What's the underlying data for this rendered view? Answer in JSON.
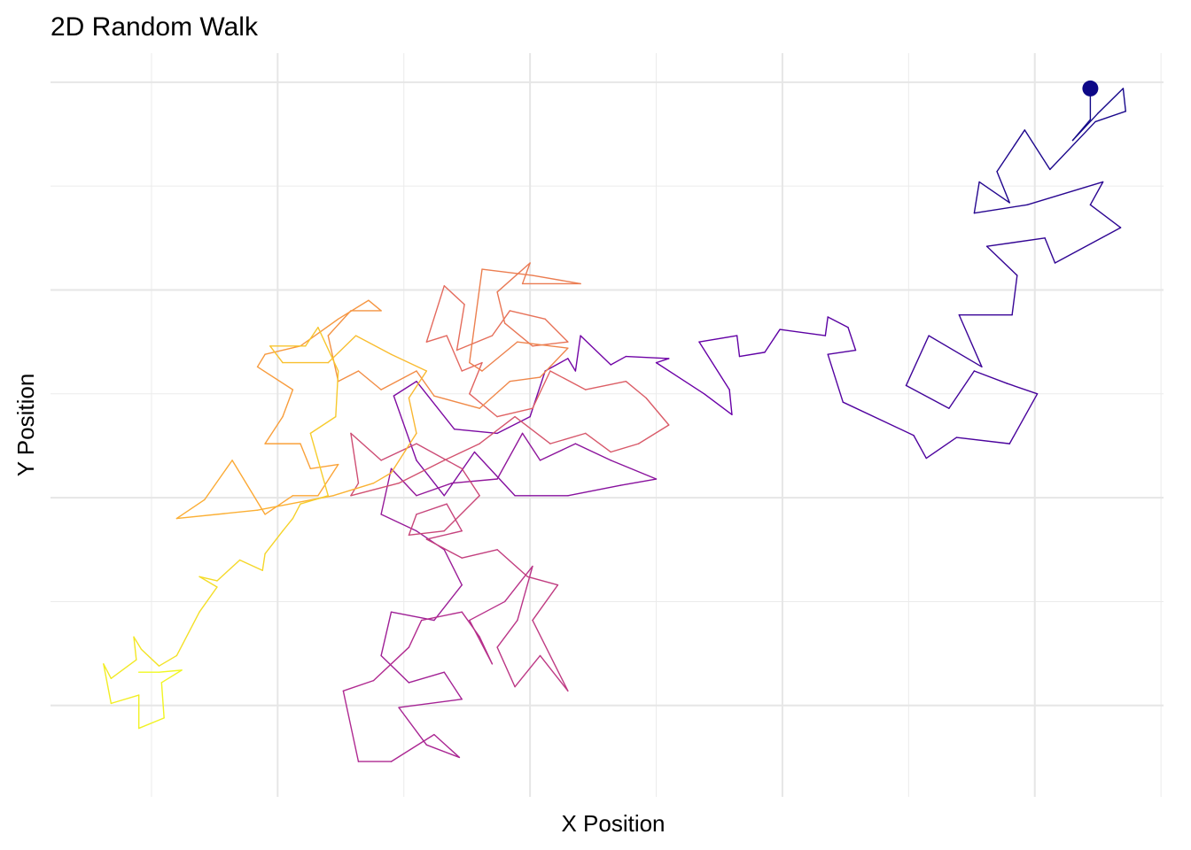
{
  "chart_data": {
    "type": "path",
    "title": "2D Random Walk",
    "x_label": "X Position",
    "y_label": "Y Position",
    "xlim": [
      -19,
      25.1
    ],
    "ylim": [
      -14.4,
      21.4
    ],
    "xticks": [
      -10,
      0,
      10,
      20
    ],
    "yticks": [
      -10,
      0,
      10,
      20
    ],
    "minor_xticks": [
      -15,
      -5,
      5,
      15,
      25
    ],
    "minor_yticks": [
      -5,
      5,
      15
    ],
    "grid": true,
    "tick_labels": false,
    "start_marker": true,
    "colors": [
      "#0d0887",
      "#6a00a8",
      "#b12a90",
      "#e16462",
      "#fca636",
      "#f0f921"
    ],
    "x": [
      22.2,
      22.2,
      21.5,
      22.5,
      23.5,
      23.6,
      22.4,
      20.6,
      19.6,
      18.5,
      19.0,
      17.8,
      17.6,
      19.7,
      22.7,
      22.2,
      23.4,
      20.8,
      20.4,
      18.1,
      19.3,
      19.1,
      17.0,
      17.9,
      15.8,
      14.9,
      16.6,
      17.6,
      18.9,
      20.1,
      19.0,
      16.9,
      15.7,
      15.2,
      12.4,
      11.8,
      12.9,
      12.6,
      11.8,
      11.7,
      9.9,
      9.3,
      8.3,
      8.2,
      6.7,
      7.9,
      8.0,
      6.9,
      5.0,
      5.5,
      3.8,
      3.2,
      2.0,
      1.8,
      1.5,
      0.6,
      0,
      -1.3,
      -3.0,
      -4.5,
      -5.4,
      -4.5,
      -3.4,
      -2.2,
      -0.6,
      1.5,
      3.6,
      5.0,
      3.2,
      1.8,
      0.4,
      -0.3,
      -1.3,
      -3.1,
      -4.5,
      -5.5,
      -5.9,
      -4.5,
      -3.4,
      -2.7,
      -3.8,
      -5.5,
      -5.9,
      -4.8,
      -3.4,
      -2.7,
      -5.2,
      -4.1,
      -2.8,
      -3.8,
      -5.5,
      -6.8,
      -7.4,
      -6.2,
      -4.8,
      -4.3,
      -2.7,
      -2.0,
      -1.5,
      -2.4,
      -1.0,
      0.1,
      -0.5,
      -1.3,
      -0.6,
      0.4,
      1.5,
      0.1,
      1.1,
      -0.1,
      -1.3,
      -2.7,
      -4.1,
      -2.7,
      -3.3,
      -4.5,
      -4.8,
      -3.4,
      -2.0,
      -2.7,
      -4.5,
      -5.9,
      -7.1,
      -6.8,
      -7.1,
      -5.2,
      -3.4,
      -2.0,
      -0.6,
      0.8,
      2.2,
      3.2,
      4.3,
      5.5,
      4.6,
      3.8,
      2.2,
      0.8,
      0.1,
      -1.3,
      -2.4,
      -1.9,
      -2.7,
      -3.3,
      -4.1,
      -3.4,
      -2.6,
      -2.9,
      -1.5,
      -0.8,
      0.6,
      1.5,
      0.1,
      -1.0,
      -1.3,
      0,
      -0.3,
      2.0,
      0.1,
      -1.9,
      -2.4,
      -1.9,
      -0.5,
      1.5,
      0.4,
      -0.8,
      -2.0,
      -3.8,
      -4.5,
      -5.9,
      -6.8,
      -7.6,
      -8.0,
      -7.1,
      -5.9,
      -6.4,
      -7.6,
      -9.1,
      -10.5,
      -10.8,
      -9.4,
      -9.8,
      -10.5,
      -9.1,
      -8.7,
      -7.6,
      -8.4,
      -9.4,
      -10.5,
      -11.8,
      -12.9,
      -14.0,
      -10.8,
      -7.8,
      -6.2,
      -5.5,
      -4.5,
      -4.8,
      -4.1,
      -5.5,
      -6.9,
      -8.0,
      -9.8,
      -10.3,
      -8.9,
      -8.4,
      -7.6,
      -7.7,
      -8.7,
      -8.0,
      -9.1,
      -9.4,
      -9.8,
      -10.5,
      -10.6,
      -11.5,
      -12.4,
      -13.1,
      -12.4,
      -13.1,
      -14.0,
      -14.7,
      -15.4,
      -15.7,
      -15.6,
      -16.6,
      -16.9,
      -16.6,
      -15.5,
      -15.5,
      -14.5,
      -14.6,
      -13.8,
      -14.7,
      -15.5
    ],
    "values": [
      19.7,
      18.2,
      17.2,
      18.5,
      19.7,
      18.6,
      18.1,
      15.8,
      17.7,
      15.7,
      14.2,
      15.2,
      13.7,
      14.1,
      15.2,
      14.1,
      13.0,
      11.3,
      12.5,
      12.1,
      10.7,
      8.8,
      8.8,
      6.3,
      7.8,
      5.4,
      4.3,
      6.1,
      5.5,
      5.0,
      2.6,
      2.9,
      1.9,
      3.0,
      4.6,
      6.9,
      7.1,
      8.2,
      8.7,
      7.8,
      8.1,
      7.0,
      6.8,
      7.8,
      7.5,
      5.2,
      4.0,
      5.0,
      6.5,
      6.7,
      6.8,
      6.4,
      7.8,
      6.1,
      6.7,
      6.1,
      3.9,
      3.1,
      3.3,
      5.6,
      4.9,
      1.8,
      0.1,
      2.2,
      0.1,
      0.1,
      0.6,
      0.9,
      1.8,
      2.6,
      1.8,
      3.1,
      0.9,
      0.7,
      0.1,
      1.4,
      -0.8,
      -1.6,
      -2.5,
      -4.2,
      -5.9,
      -5.5,
      -7.6,
      -8.9,
      -8.4,
      -9.7,
      -10.1,
      -11.9,
      -12.5,
      -11.4,
      -12.7,
      -12.7,
      -9.3,
      -8.8,
      -7.2,
      -5.9,
      -5.5,
      -6.7,
      -8.0,
      -5.9,
      -5.0,
      -3.3,
      -5.9,
      -7.2,
      -9.1,
      -7.6,
      -9.3,
      -5.9,
      -4.2,
      -3.8,
      -2.5,
      -2.9,
      -2.0,
      -1.6,
      -0.3,
      -0.8,
      -1.8,
      -1.6,
      0.1,
      1.4,
      2.6,
      1.8,
      3.1,
      0.7,
      0.1,
      0.7,
      1.8,
      2.6,
      3.9,
      2.6,
      3.1,
      2.2,
      2.6,
      3.5,
      4.8,
      5.6,
      5.2,
      6.1,
      4.3,
      3.9,
      5.0,
      6.5,
      6.1,
      7.8,
      7.5,
      10.2,
      9.3,
      7.1,
      7.8,
      9.0,
      8.6,
      7.5,
      7.3,
      8.4,
      9.9,
      11.3,
      10.3,
      10.3,
      10.7,
      11.0,
      6.5,
      6.1,
      7.5,
      7.2,
      5.8,
      5.6,
      4.3,
      4.9,
      6.1,
      5.2,
      6.1,
      5.6,
      7.8,
      9.0,
      9.0,
      9.5,
      8.6,
      7.3,
      6.9,
      6.3,
      5.2,
      3.9,
      2.6,
      2.6,
      1.4,
      1.6,
      0.1,
      0.1,
      -0.8,
      1.8,
      -0.1,
      -1.0,
      -0.6,
      0.1,
      0.7,
      1.2,
      3.1,
      4.8,
      6.1,
      6.9,
      7.8,
      6.5,
      6.5,
      7.3,
      7.3,
      8.2,
      6.1,
      3.9,
      3.1,
      0.1,
      -0.3,
      -1.0,
      -1.6,
      -2.7,
      -3.5,
      -3.0,
      -4.0,
      -3.8,
      -4.3,
      -5.5,
      -7.6,
      -8.1,
      -7.3,
      -6.7,
      -7.8,
      -8.7,
      -8.0,
      -9.9,
      -9.5,
      -11.1,
      -10.6,
      -8.9,
      -8.3,
      -8.4,
      -8.4
    ]
  }
}
